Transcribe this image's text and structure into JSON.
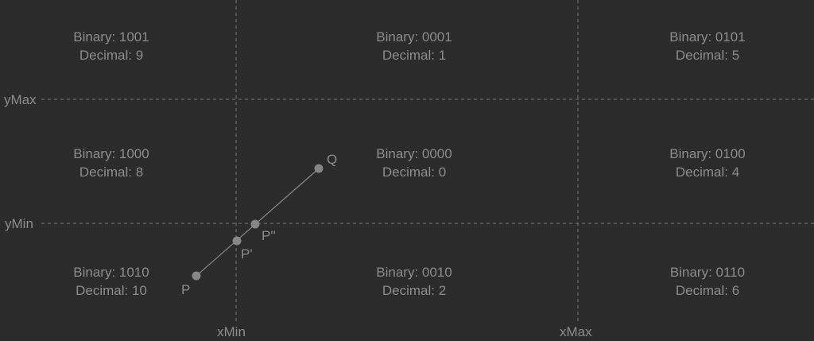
{
  "clip_lines": {
    "x_min": "xMin",
    "x_max": "xMax",
    "y_min": "yMin",
    "y_max": "yMax"
  },
  "regions": [
    {
      "binary": "Binary: 1001",
      "decimal": "Decimal: 9"
    },
    {
      "binary": "Binary: 0001",
      "decimal": "Decimal: 1"
    },
    {
      "binary": "Binary: 0101",
      "decimal": "Decimal: 5"
    },
    {
      "binary": "Binary: 1000",
      "decimal": "Decimal: 8"
    },
    {
      "binary": "Binary: 0000",
      "decimal": "Decimal: 0"
    },
    {
      "binary": "Binary: 0100",
      "decimal": "Decimal: 4"
    },
    {
      "binary": "Binary: 1010",
      "decimal": "Decimal: 10"
    },
    {
      "binary": "Binary: 0010",
      "decimal": "Decimal: 2"
    },
    {
      "binary": "Binary: 0110",
      "decimal": "Decimal: 6"
    }
  ],
  "points": {
    "p": "P",
    "p_prime": "P'",
    "p_double_prime": "P''",
    "q": "Q"
  },
  "colors": {
    "background": "#2b2b2b",
    "text": "#8c8c8c",
    "dashed_line": "#777777",
    "segment": "#8a8a8a",
    "point": "#868686"
  }
}
